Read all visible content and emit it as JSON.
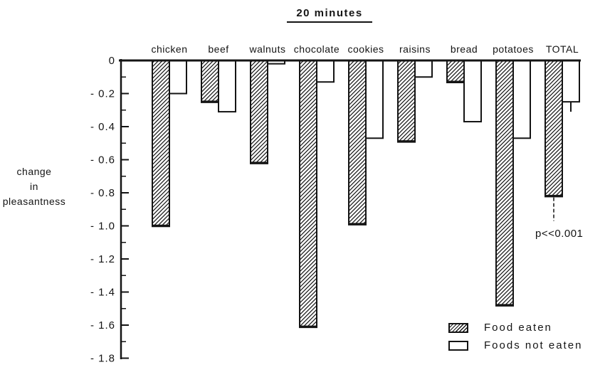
{
  "chart_data": {
    "type": "bar",
    "title": "20 minutes",
    "ylabel": "change in pleasantness",
    "ylabel_lines": [
      "change",
      "in",
      "pleasantness"
    ],
    "categories": [
      "chicken",
      "beef",
      "walnuts",
      "chocolate",
      "cookies",
      "raisins",
      "bread",
      "potatoes",
      "TOTAL"
    ],
    "series": [
      {
        "name": "Food eaten",
        "style": "hatched",
        "values": [
          -1.0,
          -0.25,
          -0.62,
          -1.61,
          -0.99,
          -0.49,
          -0.13,
          -1.48,
          -0.82
        ]
      },
      {
        "name": "Foods not eaten",
        "style": "open",
        "values": [
          -0.2,
          -0.31,
          -0.02,
          -0.13,
          -0.47,
          -0.1,
          -0.37,
          -0.47,
          -0.25
        ]
      }
    ],
    "ylim": [
      -1.8,
      0
    ],
    "yticks": [
      0,
      -0.2,
      -0.4,
      -0.6,
      -0.8,
      -1.0,
      -1.2,
      -1.4,
      -1.6,
      -1.8
    ],
    "ytick_labels": [
      "0",
      "- 0.2",
      "- 0.4",
      "- 0.6",
      "- 0.8",
      "- 1.0",
      "- 1.2",
      "- 1.4",
      "- 1.6",
      "- 1.8"
    ],
    "minor_tick_interval": 0.1,
    "grid": false,
    "legend_position": "lower right",
    "total_error_whisker": {
      "category": "TOTAL",
      "series": "Foods not eaten",
      "from": -0.25,
      "to": -0.31
    },
    "significance_line": {
      "category": "TOTAL",
      "series": "Food eaten",
      "from": -0.82,
      "to": -0.97
    },
    "significance_label": "p<<0.001",
    "ink_color": "#141414",
    "background_color": "#ffffff"
  }
}
